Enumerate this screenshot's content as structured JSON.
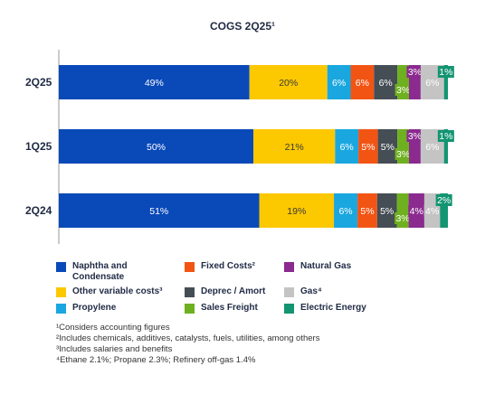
{
  "title": "COGS 2Q25¹",
  "chart_data": {
    "type": "bar",
    "orientation": "horizontal",
    "stacked": true,
    "categories": [
      "2Q25",
      "1Q25",
      "2Q24"
    ],
    "series": [
      {
        "name": "Naphtha and Condensate",
        "color": "#0a49b8",
        "values": [
          49,
          50,
          51
        ],
        "labels": [
          "49%",
          "50%",
          "51%"
        ]
      },
      {
        "name": "Other variable costs³",
        "color": "#fcc800",
        "values": [
          20,
          21,
          19
        ],
        "labels": [
          "20%",
          "21%",
          "19%"
        ]
      },
      {
        "name": "Propylene",
        "color": "#1aa7df",
        "values": [
          6,
          6,
          6
        ],
        "labels": [
          "6%",
          "6%",
          "6%"
        ]
      },
      {
        "name": "Fixed Costs²",
        "color": "#f25414",
        "values": [
          6,
          5,
          5
        ],
        "labels": [
          "6%",
          "5%",
          "5%"
        ]
      },
      {
        "name": "Deprec / Amort",
        "color": "#454d55",
        "values": [
          6,
          5,
          5
        ],
        "labels": [
          "6%",
          "5%",
          "5%"
        ]
      },
      {
        "name": "Sales Freight",
        "color": "#6fb020",
        "values": [
          3,
          3,
          3
        ],
        "labels": [
          "3%",
          "3%",
          "3%"
        ]
      },
      {
        "name": "Natural Gas",
        "color": "#8b2a8f",
        "values": [
          3,
          3,
          4
        ],
        "labels": [
          "3%",
          "3%",
          "4%"
        ]
      },
      {
        "name": "Gas⁴",
        "color": "#c4c4c4",
        "values": [
          6,
          6,
          4
        ],
        "labels": [
          "6%",
          "6%",
          "4%"
        ]
      },
      {
        "name": "Electric Energy",
        "color": "#139572",
        "values": [
          1,
          1,
          2
        ],
        "labels": [
          "1%",
          "1%",
          "2%"
        ]
      }
    ],
    "xlim": [
      0,
      100
    ],
    "grid": false,
    "legend_position": "bottom"
  },
  "legend": [
    {
      "label": "Naphtha and Condensate",
      "color": "#0a49b8"
    },
    {
      "label": "Fixed Costs²",
      "color": "#f25414"
    },
    {
      "label": "Natural Gas",
      "color": "#8b2a8f"
    },
    {
      "label": "Other variable costs³",
      "color": "#fcc800"
    },
    {
      "label": "Deprec / Amort",
      "color": "#454d55"
    },
    {
      "label": "Gas⁴",
      "color": "#c4c4c4"
    },
    {
      "label": "Propylene",
      "color": "#1aa7df"
    },
    {
      "label": "Sales Freight",
      "color": "#6fb020"
    },
    {
      "label": "Electric Energy",
      "color": "#139572"
    }
  ],
  "footnotes": [
    "¹Considers accounting figures",
    "²Includes chemicals, additives, catalysts, fuels, utilities, among others",
    "³Includes salaries and benefits",
    "⁴Ethane 2.1%; Propane 2.3%; Refinery off-gas 1.4%"
  ]
}
